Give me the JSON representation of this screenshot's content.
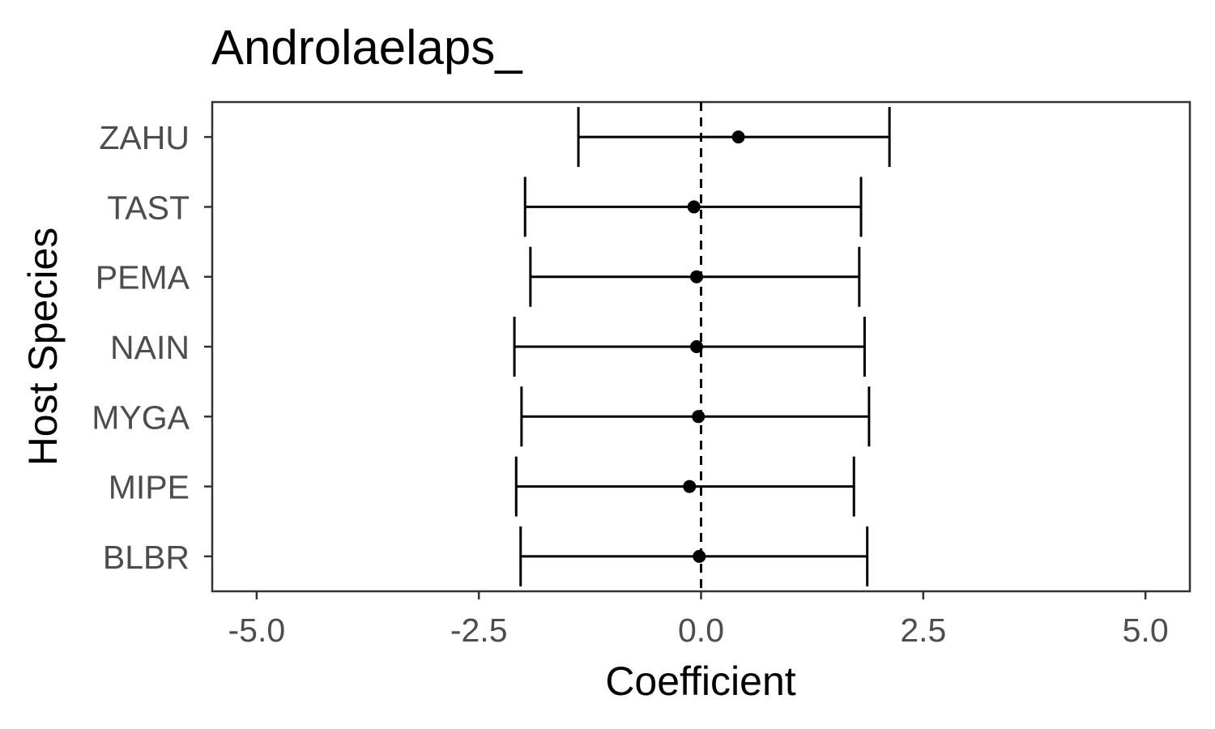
{
  "chart_data": {
    "type": "errorbar",
    "title": "Androlaelaps_",
    "xlabel": "Coefficient",
    "ylabel": "Host Species",
    "xlim": [
      -5.5,
      5.5
    ],
    "xticks": [
      -5.0,
      -2.5,
      0.0,
      2.5,
      5.0
    ],
    "xtick_labels": [
      "-5.0",
      "-2.5",
      "0.0",
      "2.5",
      "5.0"
    ],
    "reference_line": 0,
    "grid": false,
    "series": [
      {
        "category": "ZAHU",
        "estimate": 0.42,
        "lower": -1.38,
        "upper": 2.12
      },
      {
        "category": "TAST",
        "estimate": -0.08,
        "lower": -1.98,
        "upper": 1.8
      },
      {
        "category": "PEMA",
        "estimate": -0.05,
        "lower": -1.92,
        "upper": 1.78
      },
      {
        "category": "NAIN",
        "estimate": -0.05,
        "lower": -2.1,
        "upper": 1.84
      },
      {
        "category": "MYGA",
        "estimate": -0.03,
        "lower": -2.02,
        "upper": 1.89
      },
      {
        "category": "MIPE",
        "estimate": -0.13,
        "lower": -2.08,
        "upper": 1.72
      },
      {
        "category": "BLBR",
        "estimate": -0.02,
        "lower": -2.03,
        "upper": 1.87
      }
    ],
    "colors": {
      "marks": "#000000",
      "panel_border": "#333333",
      "tick_text": "#4d4d4d"
    }
  }
}
